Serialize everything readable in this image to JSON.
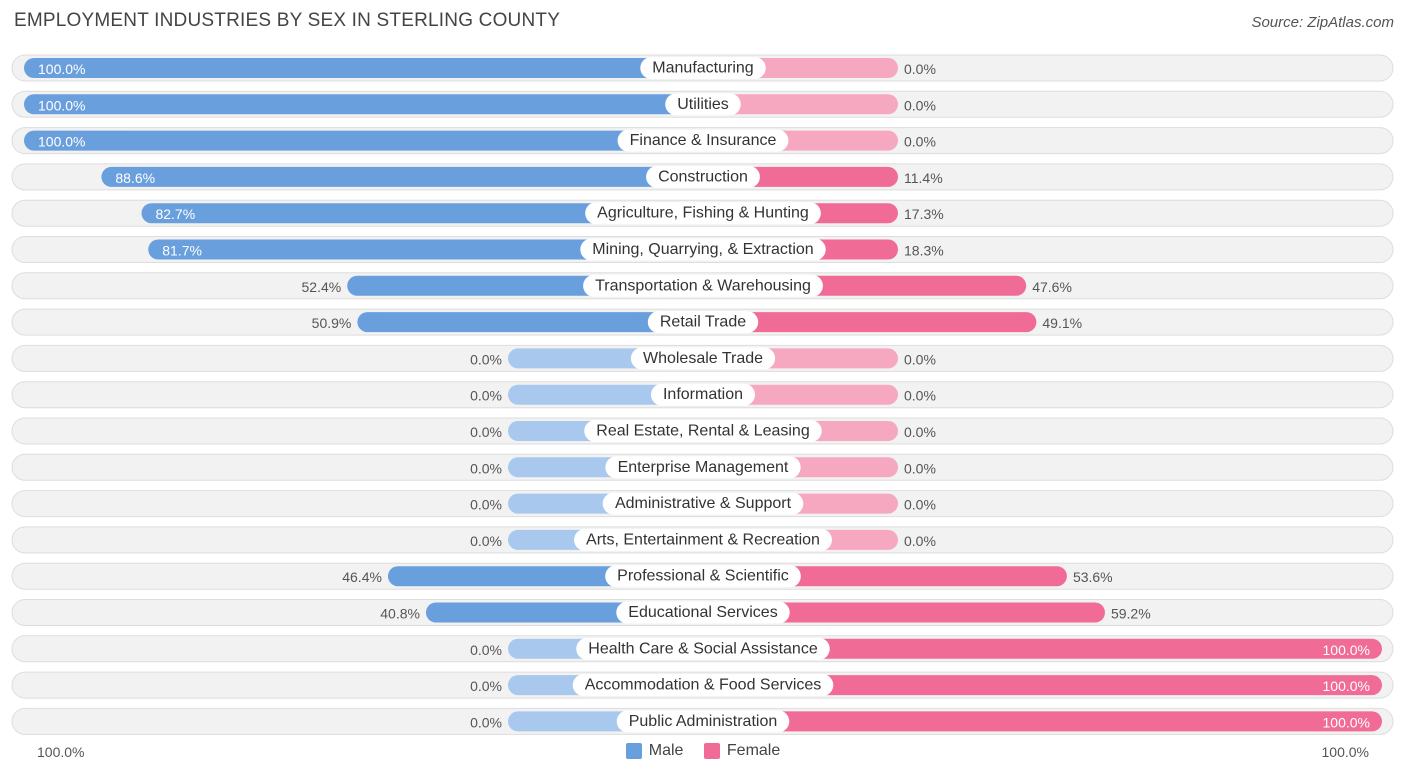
{
  "title": "EMPLOYMENT INDUSTRIES BY SEX IN STERLING COUNTY",
  "source": "Source: ZipAtlas.com",
  "colors": {
    "male_strong": "#6a9fdd",
    "male_light": "#a9c8ed",
    "female_strong": "#f06c96",
    "female_light": "#f7a8c1",
    "row_bg": "#f2f2f2",
    "row_border": "#dddddd"
  },
  "legend": {
    "male": "Male",
    "female": "Female"
  },
  "axis": {
    "left_label": "100.0%",
    "right_label": "100.0%"
  },
  "chart_data": {
    "type": "bar",
    "orientation": "horizontal-diverging",
    "title": "EMPLOYMENT INDUSTRIES BY SEX IN STERLING COUNTY",
    "xlim": [
      -100,
      100
    ],
    "categories": [
      "Manufacturing",
      "Utilities",
      "Finance & Insurance",
      "Construction",
      "Agriculture, Fishing & Hunting",
      "Mining, Quarrying, & Extraction",
      "Transportation & Warehousing",
      "Retail Trade",
      "Wholesale Trade",
      "Information",
      "Real Estate, Rental & Leasing",
      "Enterprise Management",
      "Administrative & Support",
      "Arts, Entertainment & Recreation",
      "Professional & Scientific",
      "Educational Services",
      "Health Care & Social Assistance",
      "Accommodation & Food Services",
      "Public Administration"
    ],
    "series": [
      {
        "name": "Male",
        "values": [
          100.0,
          100.0,
          100.0,
          88.6,
          82.7,
          81.7,
          52.4,
          50.9,
          0.0,
          0.0,
          0.0,
          0.0,
          0.0,
          0.0,
          46.4,
          40.8,
          0.0,
          0.0,
          0.0
        ],
        "labels": [
          "100.0%",
          "100.0%",
          "100.0%",
          "88.6%",
          "82.7%",
          "81.7%",
          "52.4%",
          "50.9%",
          "0.0%",
          "0.0%",
          "0.0%",
          "0.0%",
          "0.0%",
          "0.0%",
          "46.4%",
          "40.8%",
          "0.0%",
          "0.0%",
          "0.0%"
        ]
      },
      {
        "name": "Female",
        "values": [
          0.0,
          0.0,
          0.0,
          11.4,
          17.3,
          18.3,
          47.6,
          49.1,
          0.0,
          0.0,
          0.0,
          0.0,
          0.0,
          0.0,
          53.6,
          59.2,
          100.0,
          100.0,
          100.0
        ],
        "labels": [
          "0.0%",
          "0.0%",
          "0.0%",
          "11.4%",
          "17.3%",
          "18.3%",
          "47.6%",
          "49.1%",
          "0.0%",
          "0.0%",
          "0.0%",
          "0.0%",
          "0.0%",
          "0.0%",
          "53.6%",
          "59.2%",
          "100.0%",
          "100.0%",
          "100.0%"
        ]
      }
    ]
  }
}
